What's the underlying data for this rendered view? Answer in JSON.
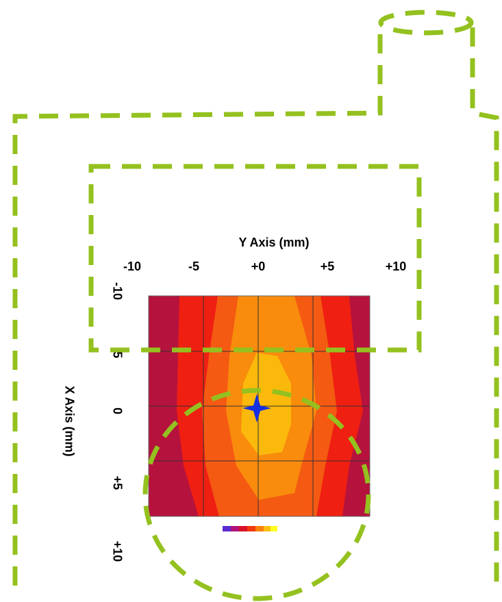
{
  "y_axis": {
    "title": "Y Axis (mm)",
    "ticks": [
      "-10",
      "-5",
      "+0",
      "+5",
      "+10"
    ]
  },
  "x_axis": {
    "title": "X Axis (mm)",
    "ticks": [
      "-10",
      "-5",
      "0",
      "+5",
      "+10"
    ]
  }
}
